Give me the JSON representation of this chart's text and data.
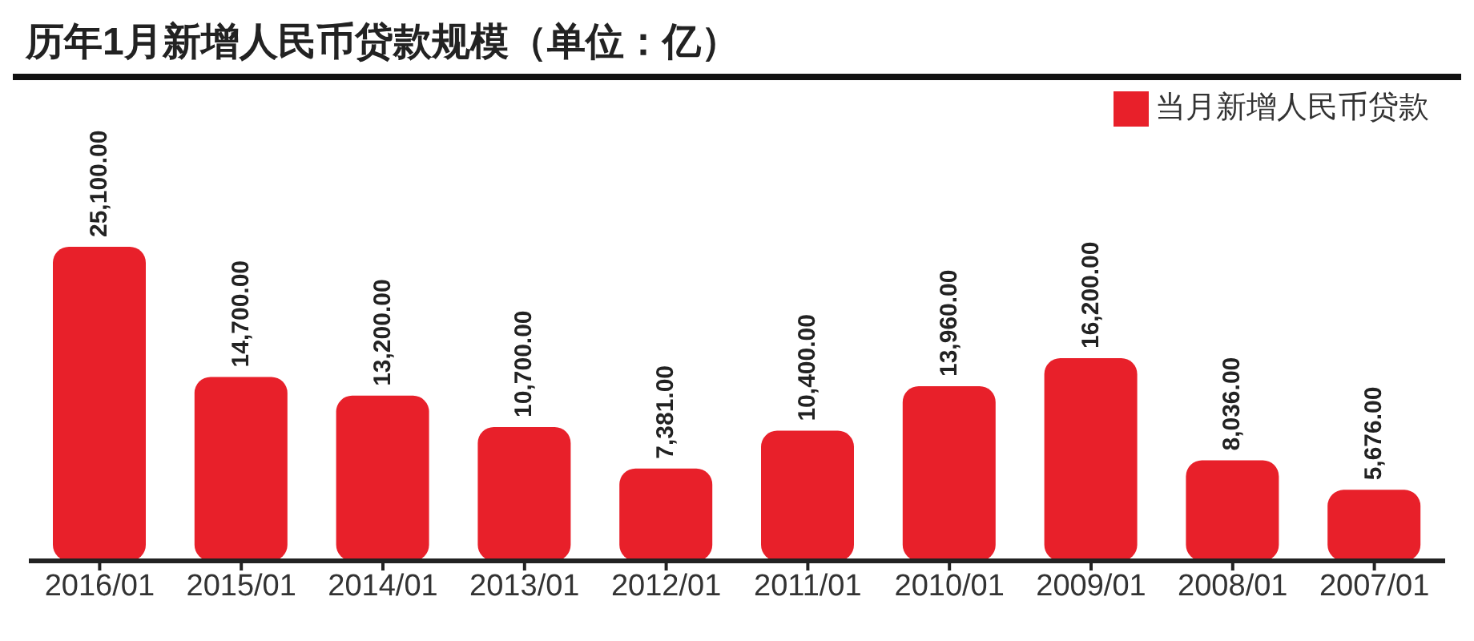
{
  "chart_data": {
    "type": "bar",
    "title": "历年1月新增人民币贷款规模（单位：亿）",
    "categories": [
      "2016/01",
      "2015/01",
      "2014/01",
      "2013/01",
      "2012/01",
      "2011/01",
      "2010/01",
      "2009/01",
      "2008/01",
      "2007/01"
    ],
    "series": [
      {
        "name": "当月新增人民币贷款",
        "color": "#e8202a",
        "values": [
          25100,
          14700,
          13200,
          10700,
          7381,
          10400,
          13960,
          16200,
          8036,
          5676
        ],
        "value_labels": [
          "25,100.00",
          "14,700.00",
          "13,200.00",
          "10,700.00",
          "7,381.00",
          "10,400.00",
          "13,960.00",
          "16,200.00",
          "8,036.00",
          "5,676.00"
        ]
      }
    ],
    "legend": "top right",
    "grid": false
  }
}
